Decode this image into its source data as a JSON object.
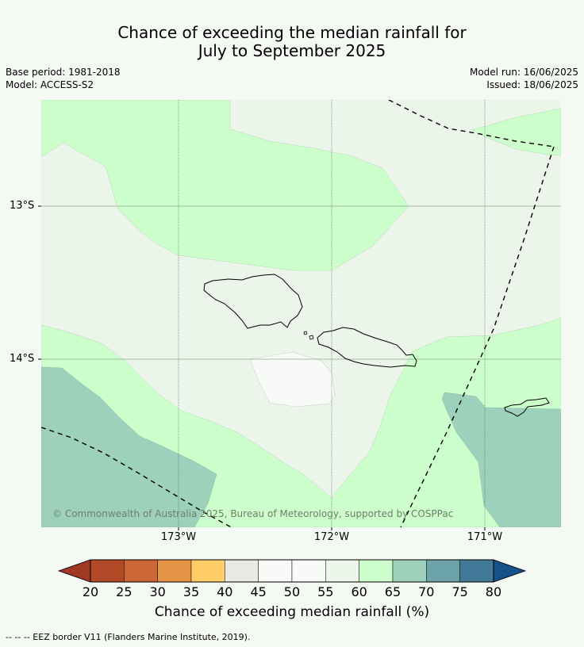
{
  "title": {
    "line1": "Chance of exceeding the median rainfall for",
    "line2": "July to September 2025"
  },
  "meta": {
    "base_period": "Base period: 1981-2018",
    "model": "Model: ACCESS-S2",
    "model_run": "Model run: 16/06/2025",
    "issued": "Issued: 18/06/2025"
  },
  "map": {
    "lon_labels": [
      "173°W",
      "172°W",
      "171°W"
    ],
    "lat_labels": [
      "13°S",
      "14°S"
    ],
    "copyright": "© Commonwealth of Australia 2025, Bureau of Meteorology, supported by COSPPac",
    "colors": {
      "p45_50": "#f7faf6",
      "p55_60": "#ebf5ea",
      "p60_65": "#ccffcc",
      "p65_70": "#9ed1bb",
      "eez_line": "#000000"
    }
  },
  "colorbar": {
    "label": "Chance of exceeding median rainfall (%)",
    "ticks": [
      "20",
      "25",
      "30",
      "35",
      "40",
      "45",
      "50",
      "55",
      "60",
      "65",
      "70",
      "75",
      "80"
    ],
    "colors": [
      "#9e3a23",
      "#b24a28",
      "#cc6633",
      "#e69445",
      "#ffcc66",
      "#ebe9e6",
      "#f7faf6",
      "#f7faf6",
      "#ebf5ea",
      "#ccffcc",
      "#9ed1bb",
      "#6ba3a8",
      "#447a99",
      "#15528a"
    ]
  },
  "footer": {
    "legend_line": "--  --  -- EEZ border V11 (Flanders Marine Institute, 2019)."
  }
}
